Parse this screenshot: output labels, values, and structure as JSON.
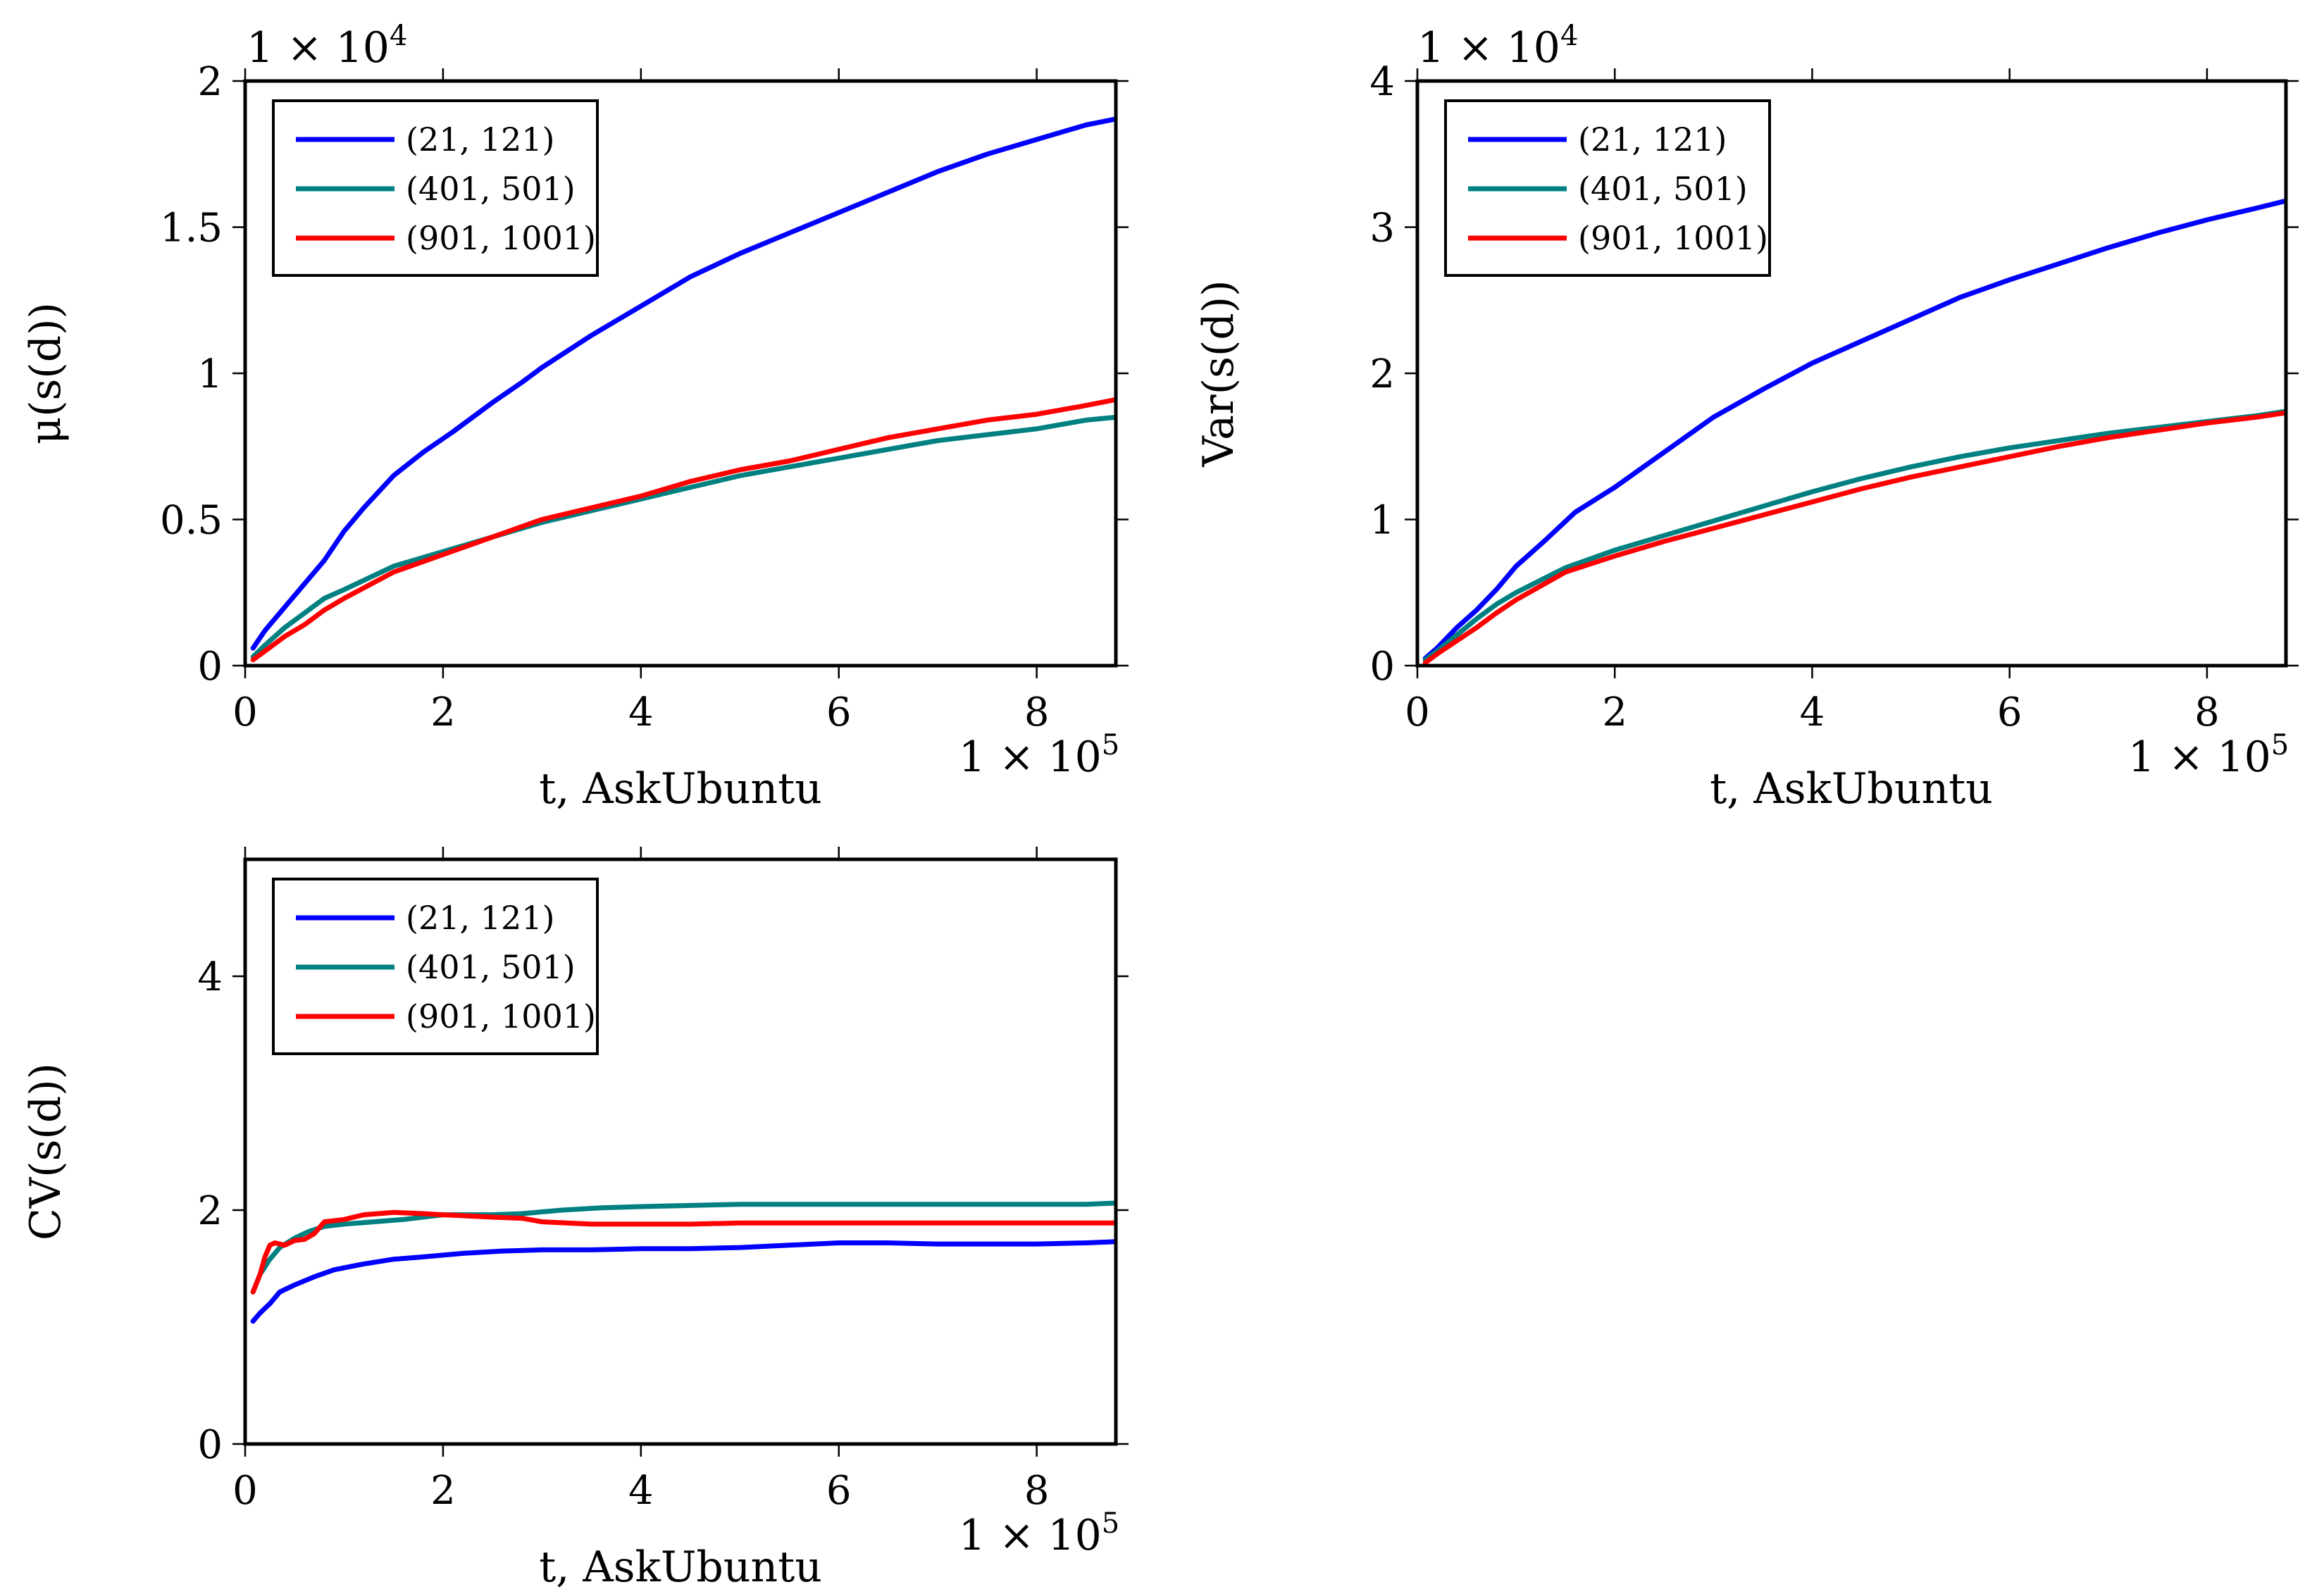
{
  "chart_data": [
    {
      "type": "line",
      "id": "mean",
      "xlabel": "t, AskUbuntu",
      "ylabel": "μ(s(d))",
      "xlim": [
        0,
        880000
      ],
      "ylim": [
        0,
        20000
      ],
      "x_ticks": [
        0,
        200000,
        400000,
        600000,
        800000
      ],
      "x_tick_labels": [
        "0",
        "2",
        "4",
        "6",
        "8"
      ],
      "y_ticks": [
        0,
        5000,
        10000,
        15000,
        20000
      ],
      "y_tick_labels": [
        "0",
        "0.5",
        "1",
        "1.5",
        "2"
      ],
      "x_multiplier": "1 × 10^5",
      "y_multiplier": "1 × 10^4",
      "legend_position": "top-left",
      "series": [
        {
          "name": "(21, 121)",
          "color": "#0000ff",
          "x": [
            8000,
            20000,
            40000,
            60000,
            80000,
            100000,
            120000,
            150000,
            180000,
            210000,
            250000,
            280000,
            300000,
            350000,
            400000,
            450000,
            500000,
            550000,
            600000,
            650000,
            700000,
            750000,
            800000,
            850000,
            880000
          ],
          "y": [
            600,
            1200,
            2000,
            2800,
            3600,
            4600,
            5400,
            6500,
            7300,
            8000,
            9000,
            9700,
            10200,
            11300,
            12300,
            13300,
            14100,
            14800,
            15500,
            16200,
            16900,
            17500,
            18000,
            18500,
            18700
          ]
        },
        {
          "name": "(401, 501)",
          "color": "#008080",
          "x": [
            8000,
            20000,
            40000,
            60000,
            80000,
            100000,
            150000,
            200000,
            250000,
            300000,
            350000,
            400000,
            450000,
            500000,
            550000,
            600000,
            650000,
            700000,
            750000,
            800000,
            850000,
            880000
          ],
          "y": [
            300,
            700,
            1300,
            1800,
            2300,
            2600,
            3400,
            3900,
            4400,
            4900,
            5300,
            5700,
            6100,
            6500,
            6800,
            7100,
            7400,
            7700,
            7900,
            8100,
            8400,
            8500
          ]
        },
        {
          "name": "(901, 1001)",
          "color": "#ff0000",
          "x": [
            8000,
            20000,
            40000,
            60000,
            80000,
            100000,
            150000,
            200000,
            250000,
            300000,
            350000,
            400000,
            450000,
            500000,
            550000,
            600000,
            650000,
            700000,
            750000,
            800000,
            850000,
            880000
          ],
          "y": [
            200,
            500,
            1000,
            1400,
            1900,
            2300,
            3200,
            3800,
            4400,
            5000,
            5400,
            5800,
            6300,
            6700,
            7000,
            7400,
            7800,
            8100,
            8400,
            8600,
            8900,
            9100
          ]
        }
      ]
    },
    {
      "type": "line",
      "id": "variance",
      "xlabel": "t, AskUbuntu",
      "ylabel": "Var(s(d))",
      "xlim": [
        0,
        880000
      ],
      "ylim": [
        0,
        40000
      ],
      "x_ticks": [
        0,
        200000,
        400000,
        600000,
        800000
      ],
      "x_tick_labels": [
        "0",
        "2",
        "4",
        "6",
        "8"
      ],
      "y_ticks": [
        0,
        10000,
        20000,
        30000,
        40000
      ],
      "y_tick_labels": [
        "0",
        "1",
        "2",
        "3",
        "4"
      ],
      "x_multiplier": "1 × 10^5",
      "y_multiplier": "1 × 10^4",
      "legend_position": "top-left",
      "series": [
        {
          "name": "(21, 121)",
          "color": "#0000ff",
          "x": [
            8000,
            20000,
            40000,
            60000,
            80000,
            100000,
            130000,
            160000,
            200000,
            250000,
            300000,
            350000,
            400000,
            450000,
            500000,
            550000,
            600000,
            650000,
            700000,
            750000,
            800000,
            850000,
            880000
          ],
          "y": [
            500,
            1200,
            2600,
            3800,
            5200,
            6800,
            8600,
            10500,
            12200,
            14600,
            17000,
            18900,
            20700,
            22200,
            23700,
            25200,
            26400,
            27500,
            28600,
            29600,
            30500,
            31300,
            31800
          ]
        },
        {
          "name": "(401, 501)",
          "color": "#008080",
          "x": [
            8000,
            20000,
            40000,
            60000,
            80000,
            100000,
            150000,
            200000,
            250000,
            300000,
            350000,
            400000,
            450000,
            500000,
            550000,
            600000,
            650000,
            700000,
            750000,
            800000,
            850000,
            880000
          ],
          "y": [
            400,
            1000,
            2100,
            3200,
            4200,
            5000,
            6700,
            7900,
            8900,
            9900,
            10900,
            11900,
            12800,
            13600,
            14300,
            14900,
            15400,
            15900,
            16300,
            16700,
            17100,
            17400
          ]
        },
        {
          "name": "(901, 1001)",
          "color": "#ff0000",
          "x": [
            8000,
            20000,
            40000,
            60000,
            80000,
            100000,
            150000,
            200000,
            250000,
            300000,
            350000,
            400000,
            450000,
            500000,
            550000,
            600000,
            650000,
            700000,
            750000,
            800000,
            850000,
            880000
          ],
          "y": [
            200,
            800,
            1700,
            2600,
            3600,
            4500,
            6400,
            7500,
            8500,
            9400,
            10300,
            11200,
            12100,
            12900,
            13600,
            14300,
            15000,
            15600,
            16100,
            16600,
            17000,
            17300
          ]
        }
      ]
    },
    {
      "type": "line",
      "id": "cv",
      "xlabel": "t, AskUbuntu",
      "ylabel": "CV(s(d))",
      "xlim": [
        0,
        880000
      ],
      "ylim": [
        0,
        5
      ],
      "x_ticks": [
        0,
        200000,
        400000,
        600000,
        800000
      ],
      "x_tick_labels": [
        "0",
        "2",
        "4",
        "6",
        "8"
      ],
      "y_ticks": [
        0,
        2,
        4
      ],
      "y_tick_labels": [
        "0",
        "2",
        "4"
      ],
      "x_multiplier": "1 × 10^5",
      "legend_position": "top-left",
      "series": [
        {
          "name": "(21, 121)",
          "color": "#0000ff",
          "x": [
            8000,
            15000,
            25000,
            35000,
            50000,
            70000,
            90000,
            120000,
            150000,
            180000,
            220000,
            260000,
            300000,
            350000,
            400000,
            450000,
            500000,
            550000,
            600000,
            650000,
            700000,
            750000,
            800000,
            850000,
            880000
          ],
          "y": [
            1.05,
            1.12,
            1.2,
            1.3,
            1.36,
            1.43,
            1.49,
            1.54,
            1.58,
            1.6,
            1.63,
            1.65,
            1.66,
            1.66,
            1.67,
            1.67,
            1.68,
            1.7,
            1.72,
            1.72,
            1.71,
            1.71,
            1.71,
            1.72,
            1.73
          ]
        },
        {
          "name": "(401, 501)",
          "color": "#008080",
          "x": [
            8000,
            15000,
            25000,
            35000,
            50000,
            65000,
            80000,
            100000,
            130000,
            160000,
            200000,
            250000,
            280000,
            320000,
            360000,
            400000,
            450000,
            500000,
            550000,
            600000,
            650000,
            700000,
            750000,
            800000,
            850000,
            880000
          ],
          "y": [
            1.3,
            1.45,
            1.58,
            1.68,
            1.76,
            1.82,
            1.86,
            1.88,
            1.9,
            1.92,
            1.96,
            1.96,
            1.97,
            2.0,
            2.02,
            2.03,
            2.04,
            2.05,
            2.05,
            2.05,
            2.05,
            2.05,
            2.05,
            2.05,
            2.05,
            2.06
          ]
        },
        {
          "name": "(901, 1001)",
          "color": "#ff0000",
          "x": [
            8000,
            15000,
            20000,
            25000,
            30000,
            40000,
            50000,
            60000,
            70000,
            80000,
            100000,
            120000,
            150000,
            180000,
            200000,
            250000,
            280000,
            300000,
            350000,
            400000,
            450000,
            500000,
            600000,
            700000,
            800000,
            880000
          ],
          "y": [
            1.3,
            1.45,
            1.6,
            1.7,
            1.72,
            1.7,
            1.74,
            1.75,
            1.8,
            1.9,
            1.92,
            1.96,
            1.98,
            1.97,
            1.96,
            1.94,
            1.93,
            1.9,
            1.88,
            1.88,
            1.88,
            1.89,
            1.89,
            1.89,
            1.89,
            1.89
          ]
        }
      ]
    }
  ]
}
